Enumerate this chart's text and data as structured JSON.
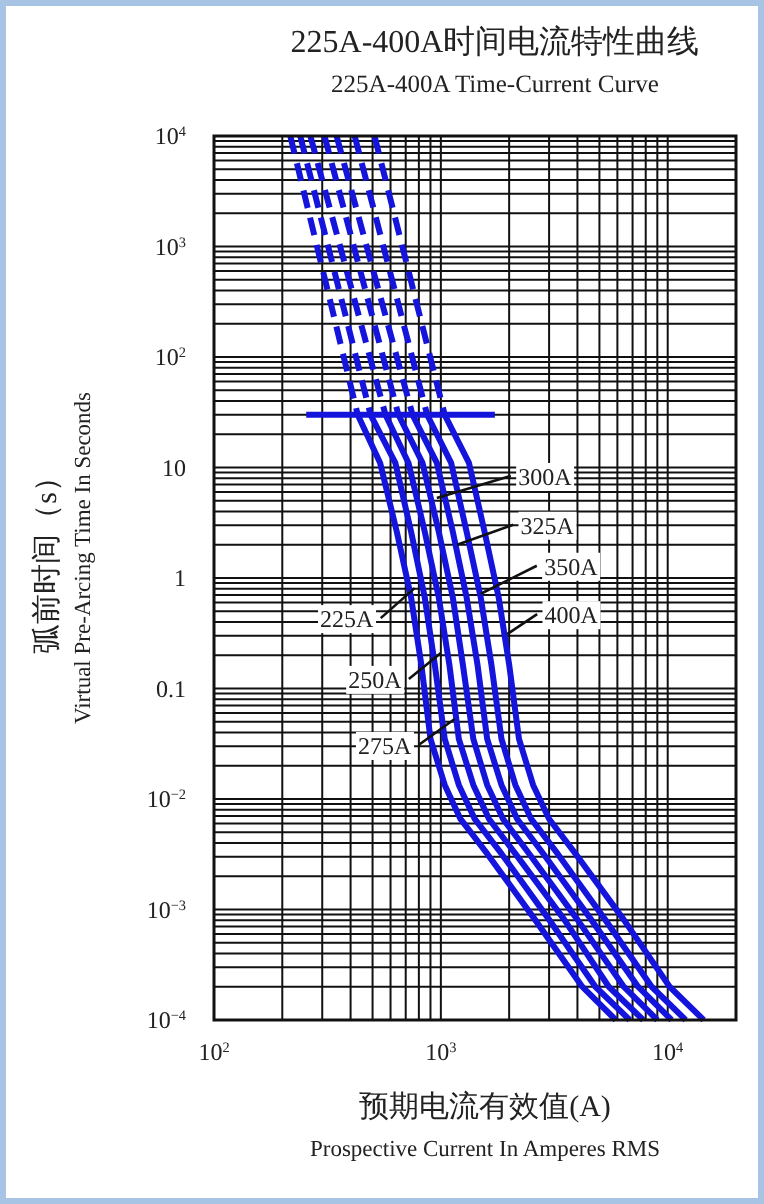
{
  "chart_data": {
    "type": "line",
    "title": "225A-400A时间电流特性曲线",
    "subtitle": "225A-400A Time-Current Curve",
    "xlabel": "预期电流有效值(A)\nProspective Current In Amperes RMS",
    "ylabel": "弧前时间（s）\nVirtual Pre-Arcing Time In Seconds",
    "log": "xy",
    "grid": true,
    "line_style": "solid",
    "xlim": [
      100,
      20000
    ],
    "ylim": [
      0.0001,
      10000
    ],
    "xticks": [
      {
        "value": 100,
        "label": "10$^{2}$"
      },
      {
        "value": 1000,
        "label": "10$^{3}$"
      },
      {
        "value": 10000,
        "label": "10$^{4}$"
      }
    ],
    "yticks": [
      {
        "value": 10000,
        "label": "10$^{4}$"
      },
      {
        "value": 1000,
        "label": "10$^{3}$"
      },
      {
        "value": 100,
        "label": "10$^{2}$"
      },
      10,
      1,
      0.1,
      {
        "value": 0.01,
        "label": "10$^{−2}$"
      },
      {
        "value": 0.001,
        "label": "10$^{−3}$"
      },
      {
        "value": 0.0001,
        "label": "10$^{−4}$"
      }
    ],
    "series": [
      {
        "color": "#1414dc",
        "x": [
          430,
          540,
          640,
          740,
          820,
          900,
          1040,
          1220,
          1600,
          2600,
          4200,
          5900
        ],
        "values": [
          30,
          11,
          2.6,
          0.66,
          0.165,
          0.035,
          0.0134,
          0.0066,
          0.0032,
          0.00081,
          0.0002,
          0.0001
        ]
      },
      {
        "color": "#1414dc",
        "x": [
          490,
          630,
          740,
          850,
          940,
          1040,
          1200,
          1410,
          1850,
          3000,
          4800,
          6800
        ],
        "values": [
          30,
          11,
          2.6,
          0.66,
          0.165,
          0.035,
          0.0134,
          0.0066,
          0.0032,
          0.00081,
          0.0002,
          0.0001
        ]
      },
      {
        "color": "#1414dc",
        "x": [
          570,
          720,
          850,
          980,
          1090,
          1200,
          1390,
          1630,
          2130,
          3500,
          5500,
          7800
        ],
        "values": [
          30,
          11,
          2.6,
          0.66,
          0.165,
          0.035,
          0.0134,
          0.0066,
          0.0032,
          0.00081,
          0.0002,
          0.0001
        ]
      },
      {
        "color": "#1414dc",
        "x": [
          650,
          830,
          980,
          1130,
          1250,
          1390,
          1600,
          1880,
          2450,
          4000,
          6400,
          9000
        ],
        "values": [
          30,
          11,
          2.6,
          0.66,
          0.165,
          0.035,
          0.0134,
          0.0066,
          0.0032,
          0.00081,
          0.0002,
          0.0001
        ]
      },
      {
        "color": "#1414dc",
        "x": [
          750,
          960,
          1130,
          1300,
          1450,
          1600,
          1850,
          2170,
          2830,
          4600,
          7400,
          10400
        ],
        "values": [
          30,
          11,
          2.6,
          0.66,
          0.165,
          0.035,
          0.0134,
          0.0066,
          0.0032,
          0.00081,
          0.0002,
          0.0001
        ]
      },
      {
        "color": "#1414dc",
        "x": [
          870,
          1110,
          1300,
          1500,
          1670,
          1850,
          2130,
          2500,
          3270,
          5300,
          8500,
          12000
        ],
        "values": [
          30,
          11,
          2.6,
          0.66,
          0.165,
          0.035,
          0.0134,
          0.0066,
          0.0032,
          0.00081,
          0.0002,
          0.0001
        ]
      },
      {
        "color": "#1414dc",
        "x": [
          1040,
          1330,
          1560,
          1800,
          2000,
          2210,
          2550,
          3000,
          3920,
          6400,
          10200,
          14400
        ],
        "values": [
          30,
          11,
          2.6,
          0.66,
          0.165,
          0.035,
          0.0134,
          0.0066,
          0.0032,
          0.00081,
          0.0002,
          0.0001
        ]
      },
      {
        "color": "#1414dc",
        "line_style": "dashed",
        "x": [
          217,
          430
        ],
        "values": [
          10000,
          30
        ]
      },
      {
        "color": "#1414dc",
        "line_style": "dashed",
        "x": [
          240,
          490
        ],
        "values": [
          10000,
          30
        ]
      },
      {
        "color": "#1414dc",
        "line_style": "dashed",
        "x": [
          266,
          570
        ],
        "values": [
          10000,
          30
        ]
      },
      {
        "color": "#1414dc",
        "line_style": "dashed",
        "x": [
          307,
          650
        ],
        "values": [
          10000,
          30
        ]
      },
      {
        "color": "#1414dc",
        "line_style": "dashed",
        "x": [
          347,
          750
        ],
        "values": [
          10000,
          30
        ]
      },
      {
        "color": "#1414dc",
        "line_style": "dashed",
        "x": [
          417,
          870
        ],
        "values": [
          10000,
          30
        ]
      },
      {
        "color": "#1414dc",
        "line_style": "dashed",
        "x": [
          510,
          1040
        ],
        "values": [
          10000,
          30
        ]
      },
      {
        "color": "#1414dc",
        "x": [
          255,
          1730
        ],
        "values": [
          30,
          30
        ]
      }
    ],
    "annotations": [
      {
        "text": "225A",
        "x": 767,
        "y": 0.81
      },
      {
        "text": "250A",
        "x": 1000,
        "y": 0.21
      },
      {
        "text": "275A",
        "x": 1150,
        "y": 0.053
      },
      {
        "text": "300A",
        "x": 960,
        "y": 5.3
      },
      {
        "text": "325A",
        "x": 1180,
        "y": 2.0
      },
      {
        "text": "350A",
        "x": 1500,
        "y": 0.72
      },
      {
        "text": "400A",
        "x": 1960,
        "y": 0.31
      }
    ]
  }
}
